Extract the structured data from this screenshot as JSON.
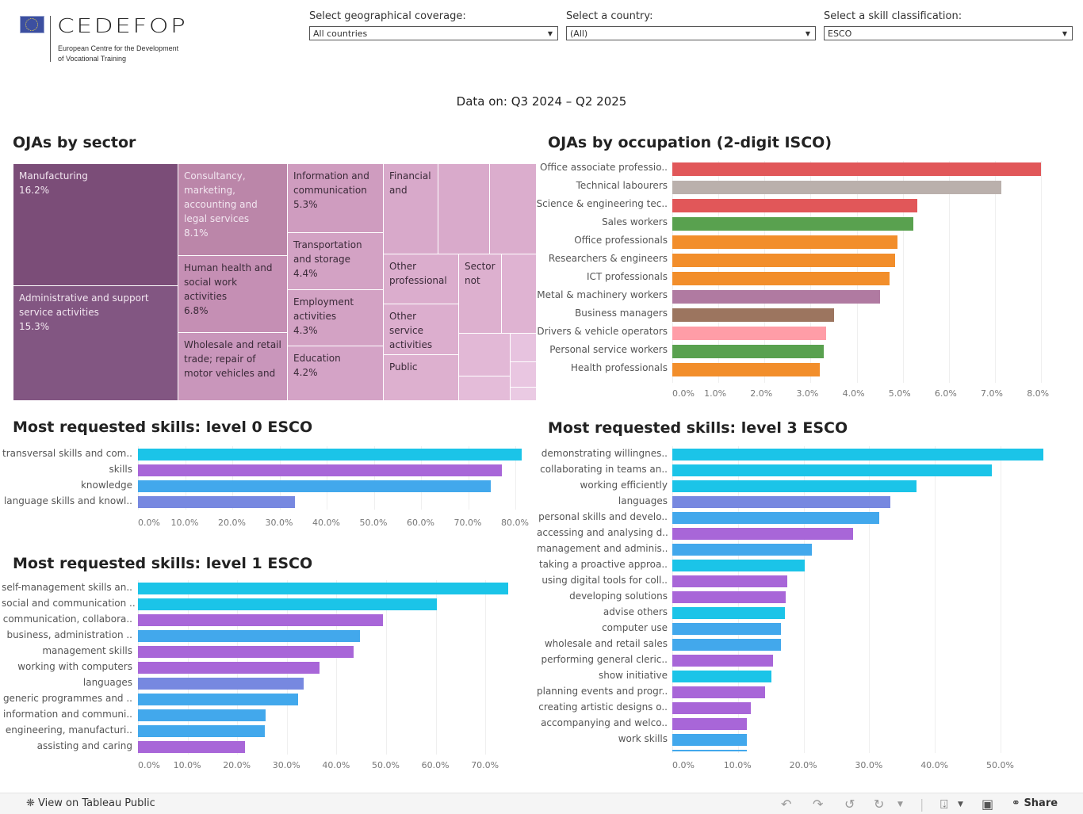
{
  "header": {
    "logo_text": "CEDEFOP",
    "logo_subtitle_line1": "European Centre for the Development",
    "logo_subtitle_line2": "of Vocational Training",
    "filters": [
      {
        "label": "Select geographical coverage:",
        "value": "All countries"
      },
      {
        "label": "Select a country:",
        "value": "(All)"
      },
      {
        "label": "Select a skill classification:",
        "value": "ESCO"
      }
    ],
    "data_period": "Data on: Q3 2024 – Q2 2025"
  },
  "sections": {
    "sector_title": "OJAs by sector",
    "occupation_title": "OJAs by occupation (2-digit ISCO)",
    "level0_title": "Most requested skills: level 0 ESCO",
    "level1_title": "Most requested skills: level 1 ESCO",
    "level3_title": "Most requested skills: level 3 ESCO"
  },
  "chart_data": [
    {
      "id": "sector",
      "type": "treemap",
      "tiles": [
        {
          "label": "Manufacturing",
          "value": "16.2%",
          "color": "#7b4d78"
        },
        {
          "label": "Administrative and support service activities",
          "value": "15.3%",
          "color": "#825682"
        },
        {
          "label": "Consultancy, marketing, accounting and legal services",
          "value": "8.1%",
          "color": "#bb86a9"
        },
        {
          "label": "Human health and social work activities",
          "value": "6.8%",
          "color": "#c58fb4"
        },
        {
          "label": "Wholesale and retail trade; repair of motor vehicles and",
          "value": "",
          "color": "#c996bb"
        },
        {
          "label": "Information and communication",
          "value": "5.3%",
          "color": "#cf9cbf"
        },
        {
          "label": "Transportation and storage",
          "value": "4.4%",
          "color": "#d3a2c4"
        },
        {
          "label": "Employment activities",
          "value": "4.3%",
          "color": "#d3a2c4"
        },
        {
          "label": "Education",
          "value": "4.2%",
          "color": "#d4a3c6"
        },
        {
          "label": "Financial and",
          "value": "",
          "color": "#d8a9ca"
        },
        {
          "label": "",
          "value": "",
          "color": "#d9aacb"
        },
        {
          "label": "",
          "value": "",
          "color": "#dbadcd"
        },
        {
          "label": "Other professional",
          "value": "",
          "color": "#dbadcd"
        },
        {
          "label": "Other service activities",
          "value": "",
          "color": "#dcaece"
        },
        {
          "label": "Public",
          "value": "",
          "color": "#ddb0cf"
        },
        {
          "label": "Sector not",
          "value": "",
          "color": "#ddb0cf"
        },
        {
          "label": "",
          "value": "",
          "color": "#dfb3d2"
        },
        {
          "label": "",
          "value": "",
          "color": "#e2b8d6"
        },
        {
          "label": "",
          "value": "",
          "color": "#e4bcd9"
        },
        {
          "label": "",
          "value": "",
          "color": "#e7c3df"
        },
        {
          "label": "",
          "value": "",
          "color": "#e9c6e1"
        },
        {
          "label": "",
          "value": "",
          "color": "#eacae3"
        }
      ]
    },
    {
      "id": "occupation",
      "type": "bar",
      "orientation": "horizontal",
      "xlim": [
        0,
        8
      ],
      "ticks": [
        "0.0%",
        "1.0%",
        "2.0%",
        "3.0%",
        "4.0%",
        "5.0%",
        "6.0%",
        "7.0%",
        "8.0%"
      ],
      "tick_values": [
        0,
        1,
        2,
        3,
        4,
        5,
        6,
        7,
        8
      ],
      "grid": true,
      "bars": [
        {
          "label": "Office associate professio..",
          "value": 8.0,
          "color": "#e15759"
        },
        {
          "label": "Technical labourers",
          "value": 7.14,
          "color": "#bab0ac"
        },
        {
          "label": "Science & engineering tec..",
          "value": 5.31,
          "color": "#e15759"
        },
        {
          "label": "Sales workers",
          "value": 5.22,
          "color": "#59a14f"
        },
        {
          "label": "Office professionals",
          "value": 4.88,
          "color": "#f28e2b"
        },
        {
          "label": "Researchers & engineers",
          "value": 4.84,
          "color": "#f28e2b"
        },
        {
          "label": "ICT professionals",
          "value": 4.71,
          "color": "#f28e2b"
        },
        {
          "label": "Metal & machinery workers",
          "value": 4.5,
          "color": "#b07aa1"
        },
        {
          "label": "Business managers",
          "value": 3.5,
          "color": "#9c755f"
        },
        {
          "label": "Drivers & vehicle operators",
          "value": 3.33,
          "color": "#ff9da7"
        },
        {
          "label": "Personal service workers",
          "value": 3.28,
          "color": "#59a14f"
        },
        {
          "label": "Health professionals",
          "value": 3.2,
          "color": "#f28e2b"
        }
      ]
    },
    {
      "id": "level0",
      "type": "bar",
      "orientation": "horizontal",
      "xlim": [
        0,
        83
      ],
      "ticks": [
        "0.0%",
        "10.0%",
        "20.0%",
        "30.0%",
        "40.0%",
        "50.0%",
        "60.0%",
        "70.0%",
        "80.0%"
      ],
      "tick_values": [
        0,
        10,
        20,
        30,
        40,
        50,
        60,
        70,
        80
      ],
      "grid": true,
      "bars": [
        {
          "label": "transversal skills and com..",
          "value": 81.3,
          "color": "#1bc4e8"
        },
        {
          "label": "skills",
          "value": 77.2,
          "color": "#a866d8"
        },
        {
          "label": "knowledge",
          "value": 74.8,
          "color": "#42a8ec"
        },
        {
          "label": "language skills and knowl..",
          "value": 33.3,
          "color": "#7788e0"
        }
      ]
    },
    {
      "id": "level1",
      "type": "bar",
      "orientation": "horizontal",
      "xlim": [
        0,
        78
      ],
      "ticks": [
        "0.0%",
        "10.0%",
        "20.0%",
        "30.0%",
        "40.0%",
        "50.0%",
        "60.0%",
        "70.0%"
      ],
      "tick_values": [
        0,
        10,
        20,
        30,
        40,
        50,
        60,
        70
      ],
      "grid": true,
      "bars": [
        {
          "label": "self-management skills an..",
          "value": 74.6,
          "color": "#1bc4e8"
        },
        {
          "label": "social and communication ..",
          "value": 60.2,
          "color": "#1bc4e8"
        },
        {
          "label": "communication, collabora..",
          "value": 49.4,
          "color": "#a866d8"
        },
        {
          "label": "business, administration ..",
          "value": 44.7,
          "color": "#42a8ec"
        },
        {
          "label": "management skills",
          "value": 43.5,
          "color": "#a866d8"
        },
        {
          "label": "working with computers",
          "value": 36.6,
          "color": "#a866d8"
        },
        {
          "label": "languages",
          "value": 33.4,
          "color": "#7788e0"
        },
        {
          "label": "generic programmes and ..",
          "value": 32.2,
          "color": "#42a8ec"
        },
        {
          "label": "information and communi..",
          "value": 25.7,
          "color": "#42a8ec"
        },
        {
          "label": "engineering, manufacturi..",
          "value": 25.5,
          "color": "#42a8ec"
        },
        {
          "label": "assisting and caring",
          "value": 21.5,
          "color": "#a866d8"
        }
      ]
    },
    {
      "id": "level3",
      "type": "bar",
      "orientation": "horizontal",
      "xlim": [
        0,
        58
      ],
      "ticks": [
        "0.0%",
        "10.0%",
        "20.0%",
        "30.0%",
        "40.0%",
        "50.0%"
      ],
      "tick_values": [
        0,
        10,
        20,
        30,
        40,
        50
      ],
      "grid": true,
      "bars": [
        {
          "label": "demonstrating willingnes..",
          "value": 56.5,
          "color": "#1bc4e8"
        },
        {
          "label": "collaborating in teams an..",
          "value": 48.7,
          "color": "#1bc4e8"
        },
        {
          "label": "working efficiently",
          "value": 37.2,
          "color": "#1bc4e8"
        },
        {
          "label": "languages",
          "value": 33.2,
          "color": "#7788e0"
        },
        {
          "label": "personal skills and develo..",
          "value": 31.5,
          "color": "#42a8ec"
        },
        {
          "label": "accessing and analysing d..",
          "value": 27.5,
          "color": "#a866d8"
        },
        {
          "label": "management and adminis..",
          "value": 21.2,
          "color": "#42a8ec"
        },
        {
          "label": "taking a proactive approa..",
          "value": 20.2,
          "color": "#1bc4e8"
        },
        {
          "label": "using digital tools for coll..",
          "value": 17.5,
          "color": "#a866d8"
        },
        {
          "label": "developing solutions",
          "value": 17.3,
          "color": "#a866d8"
        },
        {
          "label": "advise others",
          "value": 17.2,
          "color": "#1bc4e8"
        },
        {
          "label": "computer use",
          "value": 16.6,
          "color": "#42a8ec"
        },
        {
          "label": "wholesale and retail sales",
          "value": 16.5,
          "color": "#42a8ec"
        },
        {
          "label": "performing general cleric..",
          "value": 15.3,
          "color": "#a866d8"
        },
        {
          "label": "show initiative",
          "value": 15.1,
          "color": "#1bc4e8"
        },
        {
          "label": "planning events and progr..",
          "value": 14.1,
          "color": "#a866d8"
        },
        {
          "label": "creating artistic designs o..",
          "value": 11.9,
          "color": "#a866d8"
        },
        {
          "label": "accompanying and welco..",
          "value": 11.4,
          "color": "#a866d8"
        },
        {
          "label": "work skills",
          "value": 11.4,
          "color": "#42a8ec"
        },
        {
          "label": "",
          "value": 11.4,
          "color": "#42a8ec"
        }
      ]
    }
  ],
  "footer": {
    "view_on_tableau": "View on Tableau Public",
    "share": "Share",
    "icons": [
      "undo-icon",
      "redo-icon",
      "revert-icon",
      "refresh-icon",
      "download-icon",
      "fullscreen-icon",
      "share-icon"
    ]
  }
}
